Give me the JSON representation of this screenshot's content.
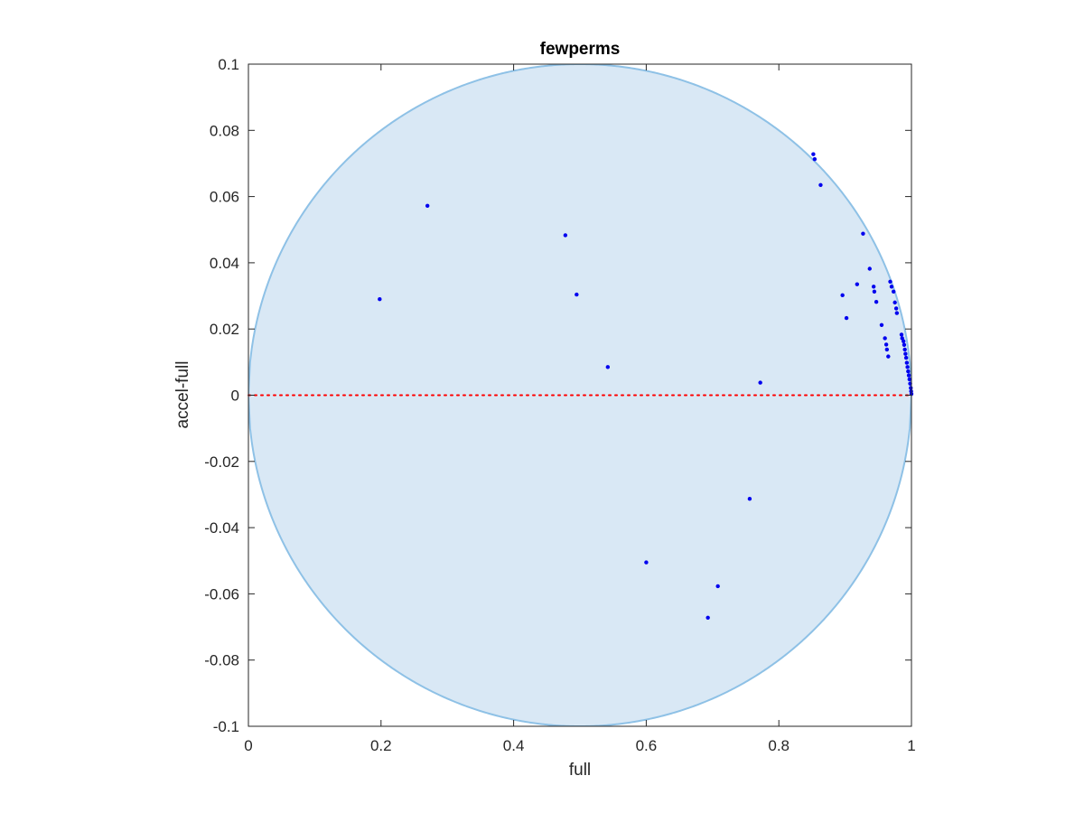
{
  "chart_data": {
    "type": "scatter",
    "title": "fewperms",
    "xlabel": "full",
    "ylabel": "accel-full",
    "xlim": [
      0,
      1
    ],
    "ylim": [
      -0.1,
      0.1
    ],
    "xticks": [
      "0",
      "0.2",
      "0.4",
      "0.6",
      "0.8",
      "1"
    ],
    "yticks": [
      "-0.1",
      "-0.08",
      "-0.06",
      "-0.04",
      "-0.02",
      "0",
      "0.02",
      "0.04",
      "0.06",
      "0.08",
      "0.1"
    ],
    "grid": false,
    "reference_line": {
      "y": 0,
      "style": "dotted",
      "color": "#ff0000"
    },
    "confidence_region": {
      "color": "#d9e8f5",
      "edge_color": "#8ec1e6"
    },
    "marker_color": "#0000ee",
    "points": [
      [
        0.198,
        0.029
      ],
      [
        0.27,
        0.0572
      ],
      [
        0.478,
        0.0483
      ],
      [
        0.495,
        0.0304
      ],
      [
        0.542,
        0.0085
      ],
      [
        0.6,
        -0.0505
      ],
      [
        0.693,
        -0.0672
      ],
      [
        0.708,
        -0.0577
      ],
      [
        0.756,
        -0.0313
      ],
      [
        0.772,
        0.0038
      ],
      [
        0.852,
        0.0728
      ],
      [
        0.854,
        0.0713
      ],
      [
        0.863,
        0.0635
      ],
      [
        0.896,
        0.0302
      ],
      [
        0.902,
        0.0233
      ],
      [
        0.918,
        0.0335
      ],
      [
        0.927,
        0.0488
      ],
      [
        0.937,
        0.0382
      ],
      [
        0.943,
        0.0328
      ],
      [
        0.944,
        0.0313
      ],
      [
        0.947,
        0.0282
      ],
      [
        0.955,
        0.0212
      ],
      [
        0.96,
        0.0172
      ],
      [
        0.962,
        0.0153
      ],
      [
        0.963,
        0.0138
      ],
      [
        0.965,
        0.0117
      ],
      [
        0.968,
        0.0343
      ],
      [
        0.97,
        0.0328
      ],
      [
        0.973,
        0.0313
      ],
      [
        0.975,
        0.028
      ],
      [
        0.977,
        0.0262
      ],
      [
        0.978,
        0.0248
      ],
      [
        0.985,
        0.0183
      ],
      [
        0.986,
        0.0172
      ],
      [
        0.988,
        0.0163
      ],
      [
        0.989,
        0.0152
      ],
      [
        0.99,
        0.0138
      ],
      [
        0.991,
        0.0125
      ],
      [
        0.992,
        0.0113
      ],
      [
        0.993,
        0.0098
      ],
      [
        0.994,
        0.0085
      ],
      [
        0.995,
        0.0072
      ],
      [
        0.996,
        0.006
      ],
      [
        0.997,
        0.0048
      ],
      [
        0.998,
        0.0035
      ],
      [
        0.999,
        0.0022
      ],
      [
        0.9995,
        0.0012
      ],
      [
        1.0,
        0.0004
      ]
    ]
  }
}
